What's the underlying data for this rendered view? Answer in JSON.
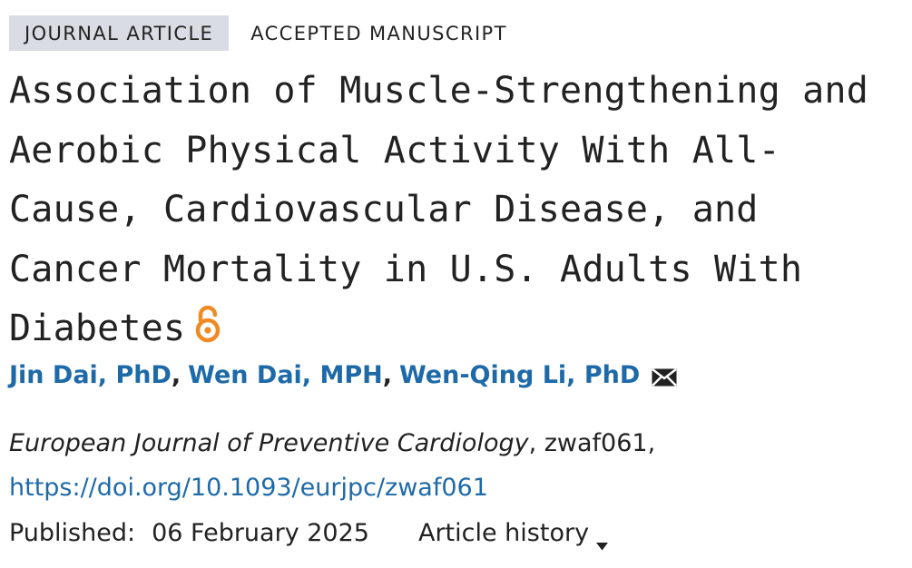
{
  "tags": {
    "primary": "JOURNAL ARTICLE",
    "secondary": "ACCEPTED MANUSCRIPT"
  },
  "title": "Association of Muscle-Strengthening and Aerobic Physical Activity With All-Cause, Cardiovascular Disease, and Cancer Mortality in U.S. Adults With Diabetes",
  "icons": {
    "open_access": "open-access-icon",
    "mail": "mail-icon",
    "caret": "caret-down-icon"
  },
  "colors": {
    "link": "#1e6aa8",
    "open_access": "#f08a24",
    "tag_bg": "#d9dde3",
    "text": "#222222"
  },
  "authors": [
    {
      "name": "Jin Dai, PhD"
    },
    {
      "name": "Wen Dai, MPH"
    },
    {
      "name": "Wen-Qing Li, PhD"
    }
  ],
  "author_separator": ",",
  "citation": {
    "journal": "European Journal of Preventive Cardiology",
    "article_id": ", zwaf061,"
  },
  "doi": "https://doi.org/10.1093/eurjpc/zwaf061",
  "published": {
    "label": "Published:",
    "date": "06 February 2025"
  },
  "history_label": "Article history"
}
